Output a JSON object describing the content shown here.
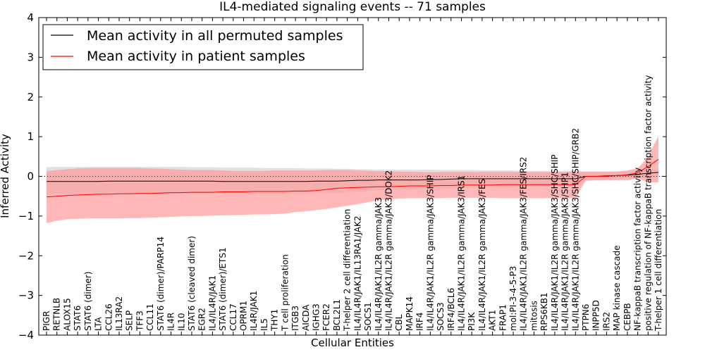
{
  "chart_data": {
    "type": "line",
    "title": "IL4-mediated signaling events -- 71 samples",
    "xlabel": "Cellular Entities",
    "ylabel": "Inferred Activity",
    "ylim": [
      -4,
      4
    ],
    "yticks": [
      -4,
      -3,
      -2,
      -1,
      0,
      1,
      2,
      3,
      4
    ],
    "ytick_labels": [
      "−4",
      "−3",
      "−2",
      "−1",
      "0",
      "1",
      "2",
      "3",
      "4"
    ],
    "legend": {
      "placement": "top-left",
      "entries": [
        {
          "label": "Mean activity in all permuted samples",
          "color": "#000000"
        },
        {
          "label": "Mean activity in patient samples",
          "color": "#ff0000"
        }
      ]
    },
    "colors": {
      "permuted": "#000000",
      "patient": "#ff0000",
      "patient_band": "#ff9999",
      "permuted_band": "#c8c8c8"
    },
    "categories": [
      "PIGR",
      "RETNLB",
      "ALOX15",
      "STAT6",
      "STAT6 (dimer)",
      "LTA",
      "CCL26",
      "IL13RA2",
      "SELP",
      "TFF3",
      "CCL11",
      "STAT6 (dimer)/PARP14",
      "IL4R",
      "IL10",
      "STAT6 (cleaved dimer)",
      "EGR2",
      "IL4/IL4R/JAK1",
      "STAT6 (dimer)/ETS1",
      "CCL17",
      "OPRM1",
      "IL4R/JAK1",
      "IL5",
      "THY1",
      "T cell proliferation",
      "ITGB3",
      "AICDA",
      "IGHG3",
      "FCER2",
      "BCL2L1",
      "T-helper 2 cell differentiation",
      "IL4/IL4R/JAK1/IL13RA1/JAK2",
      "SOCS1",
      "IL4/IL4R/JAK1/IL2R gamma/JAK3",
      "IL4/IL4R/JAK1/IL2R gamma/JAK3/DOK2",
      "CBL",
      "MAPK14",
      "IRF4",
      "IL4/IL4R/JAK1/IL2R gamma/JAK3/SHIP",
      "SOCS3",
      "IRF4/BCL6",
      "IL4/IL4R/JAK1/IL2R gamma/JAK3/IRS1",
      "PI3K",
      "IL4/IL4R/JAK1/IL2R gamma/JAK3/FES",
      "AKT1",
      "FRAP1",
      "mol:PI-3-4-5-P3",
      "IL4/IL4R/JAK1/IL2R gamma/JAK3/FES/IRS2",
      "mitosis",
      "RPS6KB1",
      "IL4/IL4R/JAK1/IL2R gamma/JAK3/SHC/SHIP",
      "IL4/IL4R/JAK1/IL2R gamma/JAK3/SHP1",
      "IL4/IL4R/JAK1/IL2R gamma/JAK3/SHC/SHIP/GRB2",
      "PTPN6",
      "INPP5D",
      "IRS2",
      "MAP kinase cascade",
      "CEBPB",
      "NF-kappaB transcription factor activity",
      "positive regulation of NF-kappaB transcription factor activity",
      "T-helper 1 cell differentiation"
    ],
    "series": [
      {
        "name": "Mean activity in all permuted samples",
        "values": [
          -0.13,
          -0.13,
          -0.13,
          -0.13,
          -0.13,
          -0.13,
          -0.12,
          -0.12,
          -0.12,
          -0.12,
          -0.12,
          -0.12,
          -0.12,
          -0.12,
          -0.12,
          -0.12,
          -0.12,
          -0.13,
          -0.13,
          -0.13,
          -0.13,
          -0.13,
          -0.13,
          -0.13,
          -0.13,
          -0.13,
          -0.12,
          -0.12,
          -0.12,
          -0.11,
          -0.1,
          -0.1,
          -0.09,
          -0.09,
          -0.09,
          -0.09,
          -0.09,
          -0.08,
          -0.08,
          -0.07,
          -0.06,
          -0.06,
          -0.06,
          -0.06,
          -0.06,
          -0.06,
          -0.06,
          -0.06,
          -0.06,
          -0.06,
          -0.06,
          -0.06,
          0.0,
          0.0,
          0.01,
          0.02,
          0.03,
          0.05,
          0.08,
          0.1
        ],
        "band_upper": [
          0.23,
          0.24,
          0.24,
          0.24,
          0.24,
          0.24,
          0.24,
          0.24,
          0.24,
          0.24,
          0.24,
          0.24,
          0.24,
          0.24,
          0.23,
          0.23,
          0.23,
          0.22,
          0.22,
          0.22,
          0.22,
          0.21,
          0.21,
          0.21,
          0.21,
          0.2,
          0.2,
          0.2,
          0.19,
          0.19,
          0.18,
          0.18,
          0.17,
          0.17,
          0.17,
          0.17,
          0.17,
          0.17,
          0.16,
          0.16,
          0.16,
          0.16,
          0.15,
          0.15,
          0.15,
          0.15,
          0.14,
          0.14,
          0.14,
          0.14,
          0.14,
          0.14,
          0.13,
          0.13,
          0.13,
          0.13,
          0.12,
          0.14,
          0.16,
          0.18
        ],
        "band_lower": [
          -0.45,
          -0.45,
          -0.45,
          -0.45,
          -0.45,
          -0.45,
          -0.44,
          -0.44,
          -0.44,
          -0.44,
          -0.44,
          -0.44,
          -0.44,
          -0.44,
          -0.44,
          -0.44,
          -0.44,
          -0.44,
          -0.44,
          -0.44,
          -0.44,
          -0.44,
          -0.44,
          -0.44,
          -0.44,
          -0.43,
          -0.42,
          -0.42,
          -0.41,
          -0.4,
          -0.38,
          -0.37,
          -0.35,
          -0.34,
          -0.33,
          -0.33,
          -0.32,
          -0.31,
          -0.3,
          -0.3,
          -0.29,
          -0.28,
          -0.28,
          -0.27,
          -0.27,
          -0.26,
          -0.26,
          -0.25,
          -0.25,
          -0.24,
          -0.24,
          -0.23,
          -0.12,
          -0.1,
          -0.08,
          -0.06,
          -0.05,
          -0.04,
          -0.03,
          -0.02
        ]
      },
      {
        "name": "Mean activity in patient samples",
        "values": [
          -0.52,
          -0.5,
          -0.48,
          -0.47,
          -0.46,
          -0.45,
          -0.45,
          -0.44,
          -0.44,
          -0.43,
          -0.43,
          -0.42,
          -0.41,
          -0.41,
          -0.4,
          -0.4,
          -0.4,
          -0.39,
          -0.39,
          -0.39,
          -0.38,
          -0.38,
          -0.38,
          -0.38,
          -0.37,
          -0.37,
          -0.36,
          -0.33,
          -0.3,
          -0.29,
          -0.28,
          -0.27,
          -0.26,
          -0.26,
          -0.25,
          -0.24,
          -0.24,
          -0.24,
          -0.23,
          -0.23,
          -0.22,
          -0.22,
          -0.22,
          -0.22,
          -0.21,
          -0.21,
          -0.21,
          -0.21,
          -0.21,
          -0.21,
          -0.21,
          -0.21,
          0.0,
          0.0,
          0.0,
          0.02,
          0.04,
          0.09,
          0.25,
          0.43
        ],
        "band_upper": [
          0.13,
          0.16,
          0.18,
          0.2,
          0.21,
          0.21,
          0.21,
          0.21,
          0.21,
          0.21,
          0.2,
          0.19,
          0.18,
          0.17,
          0.16,
          0.16,
          0.16,
          0.15,
          0.14,
          0.14,
          0.14,
          0.14,
          0.15,
          0.15,
          0.15,
          0.15,
          0.15,
          0.16,
          0.16,
          0.16,
          0.15,
          0.14,
          0.13,
          0.13,
          0.12,
          0.12,
          0.11,
          0.1,
          0.11,
          0.11,
          0.11,
          0.11,
          0.11,
          0.11,
          0.11,
          0.11,
          0.11,
          0.11,
          0.11,
          0.11,
          0.11,
          0.11,
          0.11,
          0.11,
          0.11,
          0.12,
          0.15,
          0.2,
          0.5,
          1.02
        ],
        "band_lower": [
          -1.18,
          -1.12,
          -1.08,
          -1.07,
          -1.06,
          -1.06,
          -1.06,
          -1.06,
          -1.05,
          -1.05,
          -1.04,
          -1.03,
          -1.02,
          -1.01,
          -1.0,
          -1.0,
          -0.99,
          -0.98,
          -0.98,
          -0.97,
          -0.96,
          -0.96,
          -0.95,
          -0.94,
          -0.9,
          -0.88,
          -0.85,
          -0.82,
          -0.78,
          -0.74,
          -0.7,
          -0.65,
          -0.6,
          -0.58,
          -0.56,
          -0.55,
          -0.55,
          -0.55,
          -0.55,
          -0.54,
          -0.54,
          -0.54,
          -0.54,
          -0.54,
          -0.55,
          -0.55,
          -0.55,
          -0.55,
          -0.55,
          -0.55,
          -0.55,
          -0.55,
          -0.1,
          -0.1,
          -0.1,
          -0.1,
          -0.1,
          -0.05,
          -0.15,
          -0.15
        ]
      }
    ]
  }
}
